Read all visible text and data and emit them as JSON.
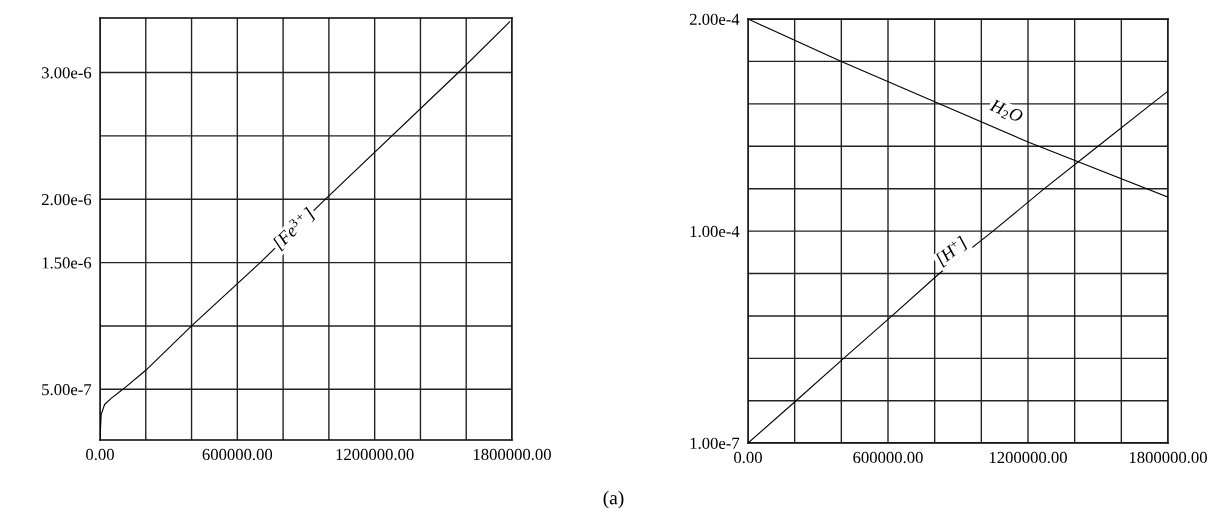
{
  "chart_data": [
    {
      "type": "line",
      "x": [
        0,
        5000,
        20000,
        50000,
        100000,
        200000,
        400000,
        700000,
        985000,
        1566000,
        1790000
      ],
      "series": [
        {
          "color": "#000000",
          "values": [
            1e-07,
            3e-07,
            3.8e-07,
            4.3e-07,
            5e-07,
            6.5e-07,
            1e-06,
            1.5e-06,
            2e-06,
            3e-06,
            3.4e-06
          ]
        }
      ],
      "xlim": [
        0,
        1800000
      ],
      "ylim": [
        1e-07,
        3.43e-06
      ],
      "xticks": [
        {
          "value": 0,
          "label": "0.00"
        },
        {
          "value": 200000,
          "label": null
        },
        {
          "value": 400000,
          "label": null
        },
        {
          "value": 600000,
          "label": "600000.00"
        },
        {
          "value": 800000,
          "label": null
        },
        {
          "value": 1000000,
          "label": null
        },
        {
          "value": 1200000,
          "label": "1200000.00"
        },
        {
          "value": 1400000,
          "label": null
        },
        {
          "value": 1600000,
          "label": null
        },
        {
          "value": 1800000,
          "label": "1800000.00"
        }
      ],
      "yticks": [
        {
          "value": 5e-07,
          "label": "5.00e-7"
        },
        {
          "value": 1e-06,
          "label": null
        },
        {
          "value": 1.5e-06,
          "label": "1.50e-6"
        },
        {
          "value": 2e-06,
          "label": "2.00e-6"
        },
        {
          "value": 2.5e-06,
          "label": null
        },
        {
          "value": 3e-06,
          "label": "3.00e-6"
        }
      ],
      "grid": true,
      "legend": false,
      "annotations": [
        {
          "text": "[Fe$^{3+}$]",
          "x": 850000,
          "y": 1.76e-06
        },
        "(a)"
      ]
    },
    {
      "type": "line",
      "x": [
        0,
        400000,
        800000,
        1200000,
        1800000
      ],
      "series": [
        {
          "color": "#000000",
          "values": [
            0.0002,
            0.00018,
            0.000161,
            0.000142,
            0.000116
          ]
        },
        {
          "color": "#000000",
          "x": [
            0,
            206000,
            410000,
            617000,
            820000,
            1050000,
            1270000,
            1500000,
            1730000,
            1800000
          ],
          "values": [
            1e-07,
            2e-05,
            4e-05,
            6e-05,
            8e-05,
            0.0001,
            0.00012,
            0.00014,
            0.00016,
            0.000166
          ]
        }
      ],
      "xlim": [
        0,
        1800000
      ],
      "ylim": [
        1e-07,
        0.0002
      ],
      "xticks": [
        {
          "value": 0,
          "label": "0.00"
        },
        {
          "value": 200000,
          "label": null
        },
        {
          "value": 400000,
          "label": null
        },
        {
          "value": 600000,
          "label": "600000.00"
        },
        {
          "value": 800000,
          "label": null
        },
        {
          "value": 1000000,
          "label": null
        },
        {
          "value": 1200000,
          "label": "1200000.00"
        },
        {
          "value": 1400000,
          "label": null
        },
        {
          "value": 1600000,
          "label": null
        },
        {
          "value": 1800000,
          "label": "1800000.00"
        }
      ],
      "yticks": [
        {
          "value": 1e-07,
          "label": "1.00e-7"
        },
        {
          "value": 2e-05,
          "label": null
        },
        {
          "value": 4e-05,
          "label": null
        },
        {
          "value": 6e-05,
          "label": null
        },
        {
          "value": 8e-05,
          "label": null
        },
        {
          "value": 0.0001,
          "label": "1.00e-4"
        },
        {
          "value": 0.00012,
          "label": null
        },
        {
          "value": 0.00014,
          "label": null
        },
        {
          "value": 0.00016,
          "label": null
        },
        {
          "value": 0.00018,
          "label": null
        },
        {
          "value": 0.0002,
          "label": "2.00e-4"
        }
      ],
      "grid": true,
      "legend": false,
      "annotations": [
        {
          "text": "H$_{2}$O",
          "x": 1106000,
          "y": 0.000156
        },
        {
          "text": "[H$^{+}$]",
          "x": 875000,
          "y": 9e-05
        }
      ]
    }
  ]
}
